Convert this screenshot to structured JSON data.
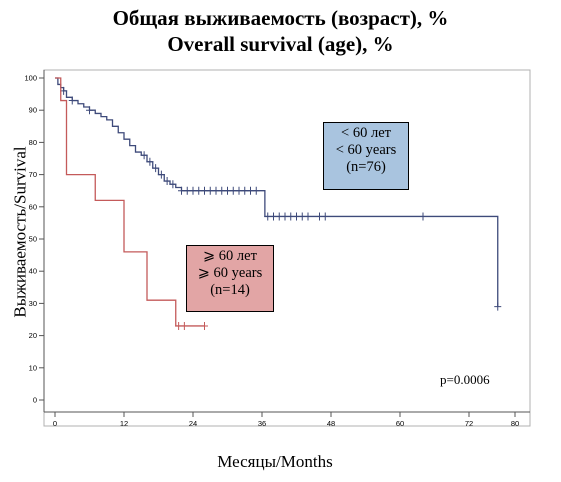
{
  "title_ru": "Общая выживаемость (возраст), %",
  "title_en": "Overall survival (age), %",
  "chart_data": {
    "type": "line",
    "step": true,
    "xlabel": "Месяцы/Months",
    "ylabel": "Выживаемость/Survival",
    "xlim": [
      0,
      80
    ],
    "ylim": [
      0,
      100
    ],
    "x_ticks": [
      0,
      12,
      24,
      36,
      48,
      60,
      72,
      80
    ],
    "y_ticks": [
      0,
      10,
      20,
      30,
      40,
      50,
      60,
      70,
      80,
      90,
      100
    ],
    "grid": false,
    "p_value": "p=0.0006",
    "series": [
      {
        "label_lines": [
          "< 60 лет",
          "< 60 years",
          "(n=76)"
        ],
        "color": "#3e4a7a",
        "legend_color": "#a9c4df",
        "x": [
          0,
          0.5,
          1,
          1.5,
          2,
          3,
          4,
          5,
          6,
          7,
          8,
          9,
          10,
          11,
          12,
          13,
          14,
          15,
          16,
          17,
          18,
          19,
          20,
          21,
          22,
          36,
          36.5,
          64,
          77
        ],
        "y": [
          100,
          98,
          97,
          96,
          94,
          93,
          92,
          91,
          90,
          89,
          88,
          87,
          85,
          83,
          81,
          79,
          77,
          76,
          74,
          72,
          70,
          68,
          67,
          66,
          65,
          65,
          57,
          57,
          29
        ],
        "censored": [
          {
            "x": 1.5,
            "y": 96
          },
          {
            "x": 3,
            "y": 93
          },
          {
            "x": 6,
            "y": 90
          },
          {
            "x": 15.5,
            "y": 76
          },
          {
            "x": 16.5,
            "y": 74
          },
          {
            "x": 17.5,
            "y": 72
          },
          {
            "x": 18.5,
            "y": 70
          },
          {
            "x": 19.5,
            "y": 68
          },
          {
            "x": 20.5,
            "y": 67
          },
          {
            "x": 22,
            "y": 65
          },
          {
            "x": 23,
            "y": 65
          },
          {
            "x": 24,
            "y": 65
          },
          {
            "x": 25,
            "y": 65
          },
          {
            "x": 26,
            "y": 65
          },
          {
            "x": 27,
            "y": 65
          },
          {
            "x": 28,
            "y": 65
          },
          {
            "x": 29,
            "y": 65
          },
          {
            "x": 30,
            "y": 65
          },
          {
            "x": 31,
            "y": 65
          },
          {
            "x": 32,
            "y": 65
          },
          {
            "x": 33,
            "y": 65
          },
          {
            "x": 34,
            "y": 65
          },
          {
            "x": 35,
            "y": 65
          },
          {
            "x": 37,
            "y": 57
          },
          {
            "x": 38,
            "y": 57
          },
          {
            "x": 39,
            "y": 57
          },
          {
            "x": 40,
            "y": 57
          },
          {
            "x": 41,
            "y": 57
          },
          {
            "x": 42,
            "y": 57
          },
          {
            "x": 43,
            "y": 57
          },
          {
            "x": 44,
            "y": 57
          },
          {
            "x": 46,
            "y": 57
          },
          {
            "x": 47,
            "y": 57
          },
          {
            "x": 64,
            "y": 57
          },
          {
            "x": 77,
            "y": 29
          }
        ]
      },
      {
        "label_lines": [
          "⩾ 60 лет",
          "⩾ 60 years",
          "(n=14)"
        ],
        "color": "#c45a5a",
        "legend_color": "#e2a5a5",
        "x": [
          0,
          1,
          2,
          7,
          12,
          16,
          21,
          26
        ],
        "y": [
          100,
          93,
          70,
          62,
          46,
          31,
          23,
          23
        ],
        "censored": [
          {
            "x": 21.5,
            "y": 23
          },
          {
            "x": 22.5,
            "y": 23
          },
          {
            "x": 26,
            "y": 23
          }
        ]
      }
    ]
  }
}
